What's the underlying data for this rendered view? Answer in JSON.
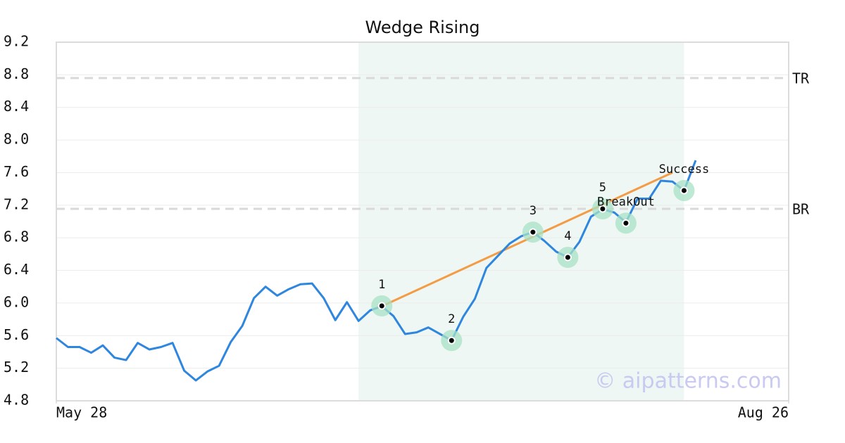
{
  "chart_data": {
    "type": "line",
    "title": "Wedge Rising",
    "x": [
      0,
      1,
      2,
      3,
      4,
      5,
      6,
      7,
      8,
      9,
      10,
      11,
      12,
      13,
      14,
      15,
      16,
      17,
      18,
      19,
      20,
      21,
      22,
      23,
      24,
      25,
      26,
      27,
      28,
      29,
      30,
      31,
      32,
      33,
      34,
      35,
      36,
      37,
      38,
      39,
      40,
      41,
      42,
      43,
      44,
      45,
      46,
      47,
      48,
      49,
      50,
      51,
      52,
      53,
      54,
      55
    ],
    "series": [
      {
        "color": "#2e86de",
        "values": [
          5.57,
          5.46,
          5.46,
          5.39,
          5.48,
          5.33,
          5.3,
          5.51,
          5.43,
          5.46,
          5.51,
          5.17,
          5.05,
          5.16,
          5.23,
          5.52,
          5.72,
          6.06,
          6.2,
          6.09,
          6.17,
          6.23,
          6.24,
          6.06,
          5.79,
          6.01,
          5.78,
          5.91,
          5.96,
          5.84,
          5.62,
          5.64,
          5.7,
          5.62,
          5.54,
          5.83,
          6.05,
          6.43,
          6.58,
          6.73,
          6.82,
          6.87,
          6.76,
          6.63,
          6.56,
          6.75,
          7.06,
          7.15,
          7.11,
          6.99,
          7.28,
          7.28,
          7.5,
          7.49,
          7.38,
          7.75
        ]
      }
    ],
    "xlim": [
      0,
      63
    ],
    "xticks": [
      {
        "value": 0,
        "label": "May 28"
      },
      {
        "value": 63,
        "label": "Aug 26"
      }
    ],
    "ylim": [
      4.8,
      9.2
    ],
    "yticks": [
      4.8,
      5.2,
      5.6,
      {
        "value": 6,
        "label": "6.0"
      },
      6.4,
      6.8,
      7.2,
      7.6,
      {
        "value": 8,
        "label": "8.0"
      },
      8.4,
      8.8,
      9.2
    ],
    "grid": true,
    "shaded_range": {
      "x": [
        26,
        54
      ],
      "color": "#eef7f3"
    },
    "levels": [
      {
        "label": "TR",
        "value": 8.76
      },
      {
        "label": "BR",
        "value": 7.155
      }
    ],
    "trendline": {
      "x": [
        28,
        53
      ],
      "y": [
        5.96,
        7.6
      ],
      "color": "#f39c45"
    },
    "points": [
      {
        "label": "1",
        "x": 28,
        "y": 5.965
      },
      {
        "label": "2",
        "x": 34,
        "y": 5.54
      },
      {
        "label": "3",
        "x": 41,
        "y": 6.87
      },
      {
        "label": "4",
        "x": 44,
        "y": 6.56
      },
      {
        "label": "5",
        "x": 47,
        "y": 7.155
      },
      {
        "label": "BreakOut",
        "x": 49,
        "y": 6.98
      },
      {
        "label": "Success",
        "x": 54,
        "y": 7.38
      }
    ],
    "watermark": "© aipatterns.com"
  }
}
